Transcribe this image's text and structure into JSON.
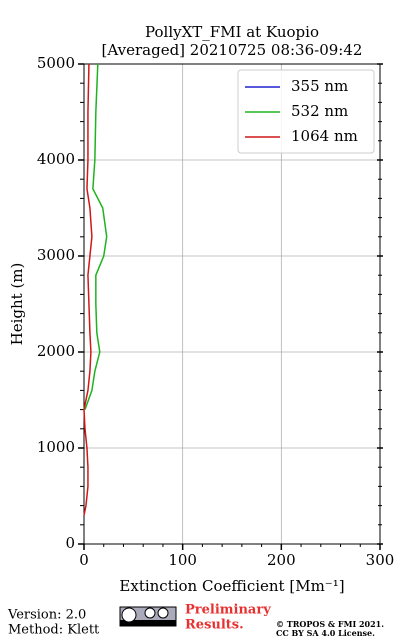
{
  "chart_data": {
    "type": "line",
    "title": [
      "PollyXT_FMI at Kuopio",
      "[Averaged] 20210725 08:36-09:42"
    ],
    "xlabel": "Extinction Coefficient [Mm⁻¹]",
    "ylabel": "Height (m)",
    "heights": [
      300,
      400,
      600,
      800,
      1000,
      1200,
      1400,
      1600,
      1800,
      2000,
      2200,
      2500,
      2800,
      3000,
      3200,
      3500,
      3700,
      4000,
      4500,
      5000
    ],
    "series": [
      {
        "name": "355 nm",
        "color": "#2020d0",
        "values": [
          null,
          null,
          null,
          null,
          null,
          null,
          null,
          null,
          null,
          null,
          null,
          null,
          null,
          null,
          null,
          null,
          null,
          null,
          null,
          null
        ]
      },
      {
        "name": "532 nm",
        "color": "#1fb31f",
        "values": [
          null,
          null,
          null,
          null,
          null,
          null,
          1,
          8,
          11,
          16,
          13,
          12,
          12,
          20,
          23,
          19,
          9,
          11,
          12,
          14
        ]
      },
      {
        "name": "1064 nm",
        "color": "#d01818",
        "values": [
          0,
          2,
          4,
          4,
          3,
          1,
          0,
          4,
          6,
          7,
          6,
          5,
          4,
          6,
          8,
          6,
          3,
          4,
          4,
          5
        ]
      }
    ],
    "xlim": [
      0,
      300
    ],
    "xticks": [
      0,
      100,
      200,
      300
    ],
    "xminorticks": [
      20,
      40,
      60,
      80,
      120,
      140,
      160,
      180,
      220,
      240,
      260,
      280
    ],
    "ylim": [
      0,
      5000
    ],
    "yticks": [
      0,
      1000,
      2000,
      3000,
      4000,
      5000
    ],
    "yminorticks": [
      200,
      400,
      600,
      800,
      1200,
      1400,
      1600,
      1800,
      2200,
      2400,
      2600,
      2800,
      3200,
      3400,
      3600,
      3800,
      4200,
      4400,
      4600,
      4800
    ],
    "grid": true,
    "legend": "upper-right"
  },
  "footer": {
    "version": "Version: 2.0",
    "method": "Method: Klett",
    "notice": [
      "Preliminary",
      "Results."
    ],
    "copyright": [
      "© TROPOS & FMI 2021.",
      "CC BY SA 4.0 License."
    ]
  }
}
